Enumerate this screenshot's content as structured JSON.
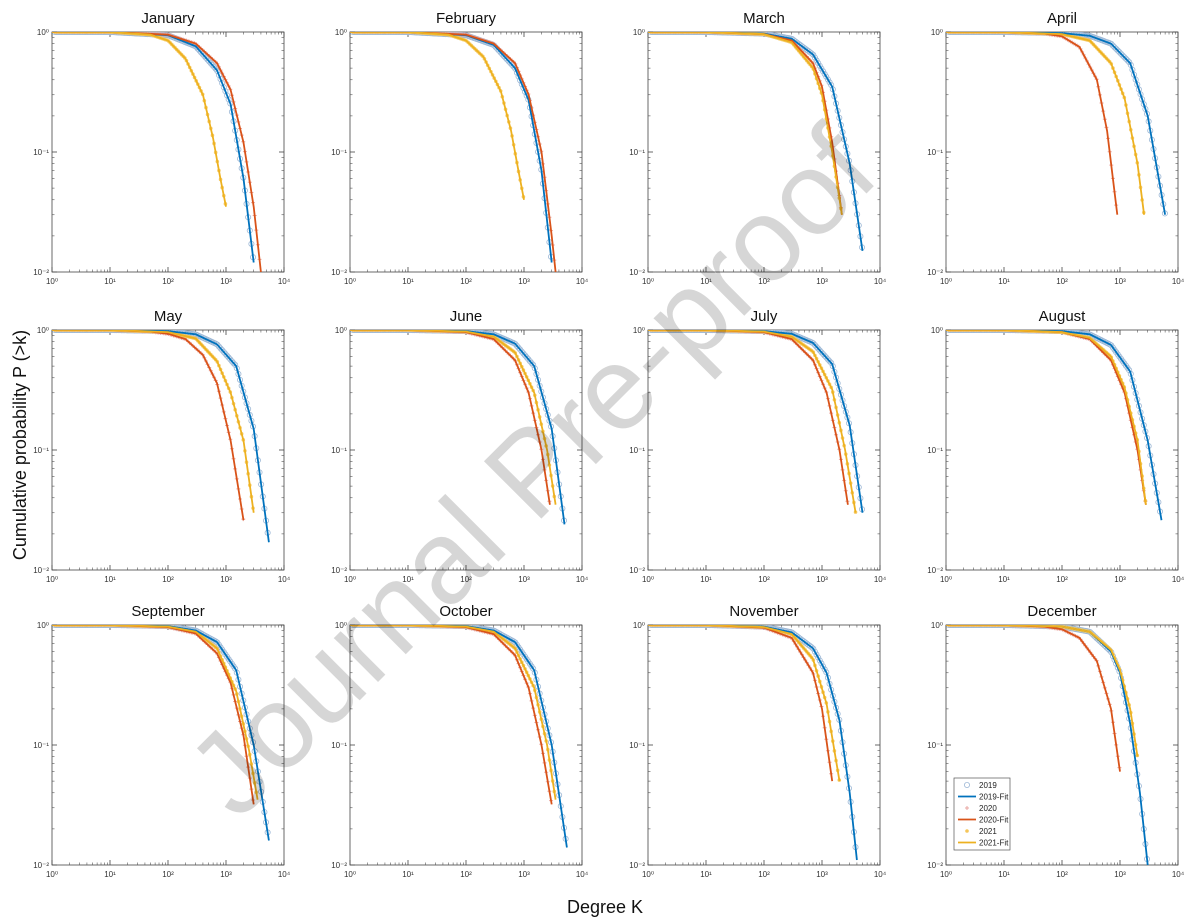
{
  "figure": {
    "xlabel": "Degree K",
    "ylabel": "Cumulative probability P (>k)",
    "watermark": "Journal Pre-proof",
    "x_tick_labels": [
      "10⁰",
      "10¹",
      "10²",
      "10³",
      "10⁴"
    ],
    "y_tick_labels": [
      "10⁰",
      "10⁻¹",
      "10⁻²"
    ]
  },
  "colors": {
    "2019": "#0072BD",
    "2019_points": "#9db8d6",
    "2020": "#D95319",
    "2020_points": "#e9a6a0",
    "2021": "#EDB120",
    "2021_points": "#f5c65a"
  },
  "legend": {
    "panel": "December",
    "entries": [
      {
        "label": "2019",
        "marker": "circle",
        "color_key": "2019_points"
      },
      {
        "label": "2019-Fit",
        "marker": "line",
        "color_key": "2019"
      },
      {
        "label": "2020",
        "marker": "plus",
        "color_key": "2020_points"
      },
      {
        "label": "2020-Fit",
        "marker": "line",
        "color_key": "2020"
      },
      {
        "label": "2021",
        "marker": "dot",
        "color_key": "2021_points"
      },
      {
        "label": "2021-Fit",
        "marker": "line",
        "color_key": "2021"
      }
    ]
  },
  "chart_data": [
    {
      "type": "line",
      "title": "January",
      "xscale": "log",
      "yscale": "log",
      "xlim": [
        1,
        10000
      ],
      "ylim": [
        0.01,
        1
      ],
      "series": [
        {
          "name": "2019-Fit",
          "x": [
            1,
            10,
            100,
            300,
            700,
            1200,
            2000,
            3000
          ],
          "y": [
            1,
            1,
            0.94,
            0.76,
            0.48,
            0.25,
            0.06,
            0.012
          ]
        },
        {
          "name": "2020-Fit",
          "x": [
            1,
            10,
            100,
            300,
            700,
            1200,
            2000,
            3000,
            4000
          ],
          "y": [
            1,
            1,
            0.95,
            0.8,
            0.55,
            0.33,
            0.12,
            0.035,
            0.01
          ]
        },
        {
          "name": "2021-Fit",
          "x": [
            1,
            10,
            50,
            100,
            200,
            400,
            600,
            800,
            1000
          ],
          "y": [
            1,
            1,
            0.95,
            0.85,
            0.6,
            0.3,
            0.13,
            0.06,
            0.035
          ]
        }
      ]
    },
    {
      "type": "line",
      "title": "February",
      "xscale": "log",
      "yscale": "log",
      "xlim": [
        1,
        10000
      ],
      "ylim": [
        0.01,
        1
      ],
      "series": [
        {
          "name": "2019-Fit",
          "x": [
            1,
            10,
            100,
            300,
            700,
            1200,
            2000,
            3000
          ],
          "y": [
            1,
            1,
            0.94,
            0.78,
            0.5,
            0.27,
            0.07,
            0.012
          ]
        },
        {
          "name": "2020-Fit",
          "x": [
            1,
            10,
            100,
            300,
            700,
            1200,
            2000,
            3000,
            3500
          ],
          "y": [
            1,
            1,
            0.95,
            0.8,
            0.55,
            0.3,
            0.1,
            0.02,
            0.01
          ]
        },
        {
          "name": "2021-Fit",
          "x": [
            1,
            10,
            50,
            100,
            200,
            400,
            600,
            800,
            1000
          ],
          "y": [
            1,
            1,
            0.95,
            0.85,
            0.62,
            0.32,
            0.15,
            0.07,
            0.04
          ]
        }
      ]
    },
    {
      "type": "line",
      "title": "March",
      "xscale": "log",
      "yscale": "log",
      "xlim": [
        1,
        10000
      ],
      "ylim": [
        0.01,
        1
      ],
      "series": [
        {
          "name": "2019-Fit",
          "x": [
            1,
            10,
            100,
            300,
            700,
            1500,
            3000,
            5000
          ],
          "y": [
            1,
            1,
            0.97,
            0.88,
            0.65,
            0.35,
            0.08,
            0.015
          ]
        },
        {
          "name": "2020-Fit",
          "x": [
            1,
            10,
            100,
            300,
            700,
            1000,
            1500,
            2200
          ],
          "y": [
            1,
            1,
            0.96,
            0.85,
            0.55,
            0.35,
            0.12,
            0.03
          ]
        },
        {
          "name": "2021-Fit",
          "x": [
            1,
            10,
            100,
            300,
            700,
            1000,
            1500,
            2200
          ],
          "y": [
            1,
            1,
            0.96,
            0.82,
            0.5,
            0.3,
            0.1,
            0.03
          ]
        }
      ]
    },
    {
      "type": "line",
      "title": "April",
      "xscale": "log",
      "yscale": "log",
      "xlim": [
        1,
        10000
      ],
      "ylim": [
        0.01,
        1
      ],
      "series": [
        {
          "name": "2019-Fit",
          "x": [
            1,
            10,
            100,
            300,
            700,
            1500,
            3000,
            6000
          ],
          "y": [
            1,
            1,
            0.98,
            0.93,
            0.8,
            0.55,
            0.2,
            0.03
          ]
        },
        {
          "name": "2020-Fit",
          "x": [
            1,
            10,
            50,
            100,
            200,
            400,
            600,
            900
          ],
          "y": [
            1,
            1,
            0.97,
            0.92,
            0.75,
            0.4,
            0.15,
            0.03
          ]
        },
        {
          "name": "2021-Fit",
          "x": [
            1,
            10,
            100,
            300,
            700,
            1200,
            2000,
            2600
          ],
          "y": [
            1,
            1,
            0.96,
            0.85,
            0.55,
            0.28,
            0.08,
            0.03
          ]
        }
      ]
    },
    {
      "type": "line",
      "title": "May",
      "xscale": "log",
      "yscale": "log",
      "xlim": [
        1,
        10000
      ],
      "ylim": [
        0.01,
        1
      ],
      "series": [
        {
          "name": "2019-Fit",
          "x": [
            1,
            10,
            100,
            300,
            700,
            1500,
            3000,
            5500
          ],
          "y": [
            1,
            1,
            0.98,
            0.92,
            0.76,
            0.5,
            0.15,
            0.017
          ]
        },
        {
          "name": "2020-Fit",
          "x": [
            1,
            10,
            50,
            100,
            200,
            400,
            700,
            1200,
            2000
          ],
          "y": [
            1,
            1,
            0.97,
            0.93,
            0.84,
            0.62,
            0.36,
            0.12,
            0.026
          ]
        },
        {
          "name": "2021-Fit",
          "x": [
            1,
            10,
            100,
            300,
            700,
            1200,
            2000,
            3000
          ],
          "y": [
            1,
            1,
            0.96,
            0.85,
            0.55,
            0.3,
            0.12,
            0.03
          ]
        }
      ]
    },
    {
      "type": "line",
      "title": "June",
      "xscale": "log",
      "yscale": "log",
      "xlim": [
        1,
        10000
      ],
      "ylim": [
        0.01,
        1
      ],
      "series": [
        {
          "name": "2019-Fit",
          "x": [
            1,
            10,
            100,
            300,
            700,
            1500,
            3000,
            5000
          ],
          "y": [
            1,
            1,
            0.98,
            0.92,
            0.77,
            0.5,
            0.15,
            0.024
          ]
        },
        {
          "name": "2020-Fit",
          "x": [
            1,
            10,
            100,
            300,
            700,
            1200,
            2000,
            2800
          ],
          "y": [
            1,
            1,
            0.96,
            0.84,
            0.56,
            0.3,
            0.1,
            0.035
          ]
        },
        {
          "name": "2021-Fit",
          "x": [
            1,
            10,
            100,
            300,
            700,
            1500,
            2500,
            3500
          ],
          "y": [
            1,
            1,
            0.97,
            0.88,
            0.65,
            0.3,
            0.1,
            0.035
          ]
        }
      ]
    },
    {
      "type": "line",
      "title": "July",
      "xscale": "log",
      "yscale": "log",
      "xlim": [
        1,
        10000
      ],
      "ylim": [
        0.01,
        1
      ],
      "series": [
        {
          "name": "2019-Fit",
          "x": [
            1,
            10,
            100,
            300,
            700,
            1500,
            3000,
            5000
          ],
          "y": [
            1,
            1,
            0.98,
            0.93,
            0.78,
            0.52,
            0.16,
            0.03
          ]
        },
        {
          "name": "2020-Fit",
          "x": [
            1,
            10,
            100,
            300,
            700,
            1200,
            2000,
            2800
          ],
          "y": [
            1,
            1,
            0.96,
            0.84,
            0.56,
            0.3,
            0.1,
            0.035
          ]
        },
        {
          "name": "2021-Fit",
          "x": [
            1,
            10,
            100,
            300,
            700,
            1500,
            2500,
            3800
          ],
          "y": [
            1,
            1,
            0.97,
            0.88,
            0.66,
            0.32,
            0.1,
            0.03
          ]
        }
      ]
    },
    {
      "type": "line",
      "title": "August",
      "xscale": "log",
      "yscale": "log",
      "xlim": [
        1,
        10000
      ],
      "ylim": [
        0.01,
        1
      ],
      "series": [
        {
          "name": "2019-Fit",
          "x": [
            1,
            10,
            100,
            300,
            700,
            1500,
            3000,
            5200
          ],
          "y": [
            1,
            1,
            0.98,
            0.92,
            0.75,
            0.45,
            0.12,
            0.026
          ]
        },
        {
          "name": "2020-Fit",
          "x": [
            1,
            10,
            100,
            300,
            700,
            1200,
            2000,
            2800
          ],
          "y": [
            1,
            1,
            0.96,
            0.84,
            0.56,
            0.3,
            0.1,
            0.035
          ]
        },
        {
          "name": "2021-Fit",
          "x": [
            1,
            10,
            100,
            300,
            700,
            1200,
            2000,
            2800
          ],
          "y": [
            1,
            1,
            0.96,
            0.86,
            0.6,
            0.33,
            0.12,
            0.035
          ]
        }
      ]
    },
    {
      "type": "line",
      "title": "September",
      "xscale": "log",
      "yscale": "log",
      "xlim": [
        1,
        10000
      ],
      "ylim": [
        0.01,
        1
      ],
      "series": [
        {
          "name": "2019-Fit",
          "x": [
            1,
            10,
            100,
            300,
            700,
            1500,
            3000,
            5500
          ],
          "y": [
            1,
            1,
            0.98,
            0.9,
            0.72,
            0.42,
            0.1,
            0.016
          ]
        },
        {
          "name": "2020-Fit",
          "x": [
            1,
            10,
            100,
            300,
            700,
            1200,
            2000,
            3000
          ],
          "y": [
            1,
            1,
            0.96,
            0.85,
            0.58,
            0.33,
            0.12,
            0.032
          ]
        },
        {
          "name": "2021-Fit",
          "x": [
            1,
            10,
            100,
            300,
            700,
            1500,
            2500,
            3500
          ],
          "y": [
            1,
            1,
            0.97,
            0.88,
            0.64,
            0.28,
            0.09,
            0.035
          ]
        }
      ]
    },
    {
      "type": "line",
      "title": "October",
      "xscale": "log",
      "yscale": "log",
      "xlim": [
        1,
        10000
      ],
      "ylim": [
        0.01,
        1
      ],
      "series": [
        {
          "name": "2019-Fit",
          "x": [
            1,
            10,
            100,
            300,
            700,
            1500,
            3000,
            5500
          ],
          "y": [
            1,
            1,
            0.98,
            0.9,
            0.72,
            0.42,
            0.1,
            0.014
          ]
        },
        {
          "name": "2020-Fit",
          "x": [
            1,
            10,
            100,
            300,
            700,
            1200,
            2000,
            3000
          ],
          "y": [
            1,
            1,
            0.96,
            0.84,
            0.56,
            0.3,
            0.1,
            0.032
          ]
        },
        {
          "name": "2021-Fit",
          "x": [
            1,
            10,
            100,
            300,
            700,
            1500,
            2500,
            3500
          ],
          "y": [
            1,
            1,
            0.97,
            0.88,
            0.64,
            0.3,
            0.1,
            0.035
          ]
        }
      ]
    },
    {
      "type": "line",
      "title": "November",
      "xscale": "log",
      "yscale": "log",
      "xlim": [
        1,
        10000
      ],
      "ylim": [
        0.01,
        1
      ],
      "series": [
        {
          "name": "2019-Fit",
          "x": [
            1,
            10,
            100,
            300,
            700,
            1200,
            2000,
            3000,
            4000
          ],
          "y": [
            1,
            1,
            0.97,
            0.87,
            0.64,
            0.4,
            0.16,
            0.04,
            0.011
          ]
        },
        {
          "name": "2020-Fit",
          "x": [
            1,
            10,
            100,
            300,
            700,
            1000,
            1500
          ],
          "y": [
            1,
            1,
            0.95,
            0.78,
            0.4,
            0.2,
            0.05
          ]
        },
        {
          "name": "2021-Fit",
          "x": [
            1,
            10,
            100,
            300,
            700,
            1200,
            2000
          ],
          "y": [
            1,
            1,
            0.96,
            0.84,
            0.52,
            0.22,
            0.05
          ]
        }
      ]
    },
    {
      "type": "line",
      "title": "December",
      "xscale": "log",
      "yscale": "log",
      "xlim": [
        1,
        10000
      ],
      "ylim": [
        0.01,
        1
      ],
      "series": [
        {
          "name": "2019-Fit",
          "x": [
            1,
            10,
            100,
            300,
            700,
            1000,
            1500,
            2200,
            3000
          ],
          "y": [
            1,
            1,
            0.97,
            0.88,
            0.6,
            0.4,
            0.15,
            0.04,
            0.01
          ]
        },
        {
          "name": "2020-Fit",
          "x": [
            1,
            10,
            50,
            100,
            200,
            400,
            700,
            1000
          ],
          "y": [
            1,
            1,
            0.97,
            0.92,
            0.78,
            0.5,
            0.2,
            0.06
          ]
        },
        {
          "name": "2021-Fit",
          "x": [
            1,
            10,
            100,
            300,
            700,
            1000,
            1500,
            2000
          ],
          "y": [
            1,
            1,
            0.97,
            0.88,
            0.62,
            0.42,
            0.2,
            0.08
          ]
        }
      ]
    }
  ]
}
